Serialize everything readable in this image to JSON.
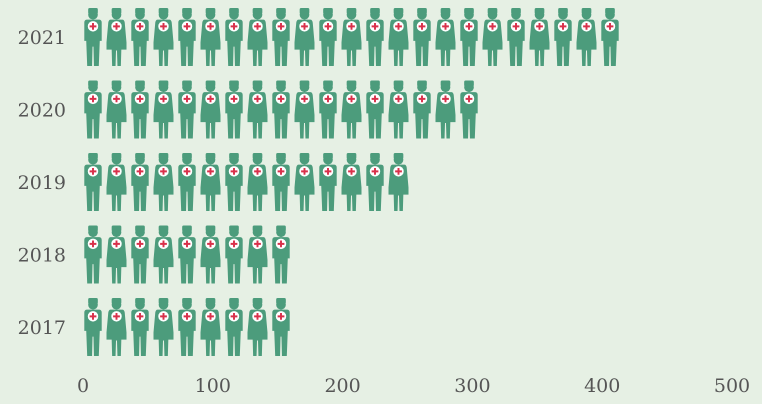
{
  "chart_data": {
    "type": "bar",
    "orientation": "horizontal",
    "pictograph": true,
    "icon": "nurse-icon",
    "title": "",
    "xlabel": "",
    "ylabel": "",
    "categories": [
      "2021",
      "2020",
      "2019",
      "2018",
      "2017"
    ],
    "values": [
      415,
      305,
      250,
      160,
      160
    ],
    "xlim": [
      0,
      500
    ],
    "x_ticks": [
      "0",
      "100",
      "200",
      "300",
      "400",
      "500"
    ],
    "grid": false,
    "legend": "none",
    "colors": {
      "background": "#e6f0e4",
      "icon": "#4c9c7c",
      "cross": "#d9304a",
      "badge": "#ffffff",
      "tick_text": "#555555"
    }
  }
}
